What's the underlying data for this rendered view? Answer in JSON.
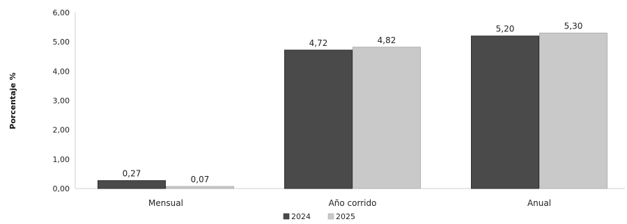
{
  "chart_data": {
    "type": "bar",
    "title": "",
    "xlabel": "",
    "ylabel": "Porcentaje %",
    "ylim": [
      0,
      6
    ],
    "y_ticks": [
      "0,00",
      "1,00",
      "2,00",
      "3,00",
      "4,00",
      "5,00",
      "6,00"
    ],
    "categories": [
      "Mensual",
      "Año corrido",
      "Anual"
    ],
    "series": [
      {
        "name": "2024",
        "values": [
          0.27,
          4.72,
          5.2
        ],
        "labels": [
          "0,27",
          "4,72",
          "5,20"
        ],
        "color": "#4a4a4a"
      },
      {
        "name": "2025",
        "values": [
          0.07,
          4.82,
          5.3
        ],
        "labels": [
          "0,07",
          "4,82",
          "5,30"
        ],
        "color": "#c9c9c9"
      }
    ],
    "grid": false,
    "legend_position": "bottom"
  }
}
